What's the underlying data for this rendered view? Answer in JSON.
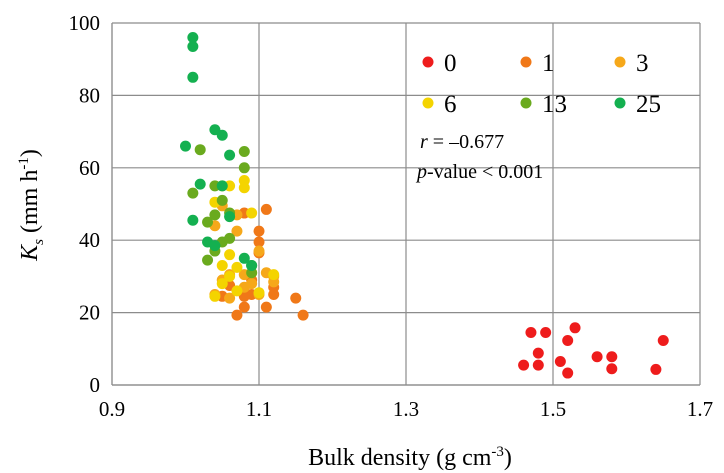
{
  "chart_data": {
    "type": "scatter",
    "xlabel": "Bulk density (g cm",
    "xlabel_sup": "-3",
    "xlabel_suffix": ")",
    "ylabel_main": "K",
    "ylabel_sub": "s",
    "ylabel_rest": " (mm h",
    "ylabel_sup": "-1",
    "ylabel_end": ")",
    "xlim": [
      0.9,
      1.7
    ],
    "ylim": [
      0,
      100
    ],
    "xticks": [
      "0.9",
      "1.1",
      "1.3",
      "1.5",
      "1.7"
    ],
    "xtick_values": [
      0.9,
      1.1,
      1.3,
      1.5,
      1.7
    ],
    "yticks": [
      "0",
      "20",
      "40",
      "60",
      "80",
      "100"
    ],
    "ytick_values": [
      0,
      20,
      40,
      60,
      80,
      100
    ],
    "grid": true,
    "legend_position": "top-right",
    "stats": {
      "r_label": "r",
      "r_value": " = –0.677",
      "p_label": "p",
      "p_value": "-value < 0.001"
    },
    "series": [
      {
        "name": "0",
        "color": "#ee1c1c",
        "points": [
          [
            1.46,
            5.5
          ],
          [
            1.47,
            14.5
          ],
          [
            1.48,
            8.8
          ],
          [
            1.48,
            5.5
          ],
          [
            1.49,
            14.5
          ],
          [
            1.51,
            6.5
          ],
          [
            1.52,
            12.3
          ],
          [
            1.52,
            3.3
          ],
          [
            1.53,
            15.8
          ],
          [
            1.56,
            7.8
          ],
          [
            1.58,
            7.8
          ],
          [
            1.58,
            4.5
          ],
          [
            1.64,
            4.3
          ],
          [
            1.65,
            12.3
          ]
        ]
      },
      {
        "name": "1",
        "color": "#f07818",
        "points": [
          [
            1.07,
            19.3
          ],
          [
            1.08,
            21.5
          ],
          [
            1.08,
            24.5
          ],
          [
            1.09,
            25
          ],
          [
            1.09,
            29
          ],
          [
            1.1,
            39.5
          ],
          [
            1.1,
            36.5
          ],
          [
            1.11,
            48.5
          ],
          [
            1.11,
            21.5
          ],
          [
            1.12,
            27
          ],
          [
            1.12,
            25
          ],
          [
            1.15,
            24
          ],
          [
            1.16,
            19.3
          ],
          [
            1.06,
            27.5
          ],
          [
            1.08,
            47.5
          ],
          [
            1.05,
            24.5
          ],
          [
            1.1,
            42.5
          ]
        ]
      },
      {
        "name": "3",
        "color": "#f6a81a",
        "points": [
          [
            1.04,
            44
          ],
          [
            1.04,
            25
          ],
          [
            1.05,
            29
          ],
          [
            1.06,
            30.5
          ],
          [
            1.06,
            24
          ],
          [
            1.07,
            42.5
          ],
          [
            1.08,
            30.5
          ],
          [
            1.08,
            27
          ],
          [
            1.09,
            28
          ],
          [
            1.1,
            37
          ],
          [
            1.1,
            25
          ],
          [
            1.11,
            31
          ],
          [
            1.12,
            30
          ],
          [
            1.12,
            28.5
          ],
          [
            1.05,
            49.5
          ],
          [
            1.07,
            47
          ]
        ]
      },
      {
        "name": "6",
        "color": "#f4d400",
        "points": [
          [
            1.04,
            50.5
          ],
          [
            1.05,
            55
          ],
          [
            1.05,
            33
          ],
          [
            1.06,
            55
          ],
          [
            1.06,
            36
          ],
          [
            1.06,
            30
          ],
          [
            1.07,
            26
          ],
          [
            1.08,
            56.5
          ],
          [
            1.08,
            54.5
          ],
          [
            1.09,
            47.5
          ],
          [
            1.09,
            31
          ],
          [
            1.1,
            25.5
          ],
          [
            1.12,
            30.5
          ],
          [
            1.04,
            24.5
          ],
          [
            1.05,
            28
          ],
          [
            1.07,
            32.5
          ]
        ]
      },
      {
        "name": "13",
        "color": "#6aaa1e",
        "points": [
          [
            1.01,
            53
          ],
          [
            1.02,
            65
          ],
          [
            1.03,
            34.5
          ],
          [
            1.04,
            55
          ],
          [
            1.04,
            47
          ],
          [
            1.04,
            37
          ],
          [
            1.05,
            51
          ],
          [
            1.05,
            39.5
          ],
          [
            1.06,
            47.5
          ],
          [
            1.06,
            40.5
          ],
          [
            1.08,
            64.5
          ],
          [
            1.08,
            60
          ],
          [
            1.09,
            33
          ],
          [
            1.09,
            31
          ],
          [
            1.03,
            45
          ]
        ]
      },
      {
        "name": "25",
        "color": "#14b050",
        "points": [
          [
            1.01,
            96
          ],
          [
            1.01,
            93.5
          ],
          [
            1.01,
            85
          ],
          [
            1.0,
            66
          ],
          [
            1.04,
            70.5
          ],
          [
            1.05,
            69
          ],
          [
            1.06,
            63.5
          ],
          [
            1.02,
            55.5
          ],
          [
            1.05,
            55
          ],
          [
            1.01,
            45.5
          ],
          [
            1.03,
            39.5
          ],
          [
            1.06,
            46.5
          ],
          [
            1.08,
            35
          ],
          [
            1.09,
            33
          ],
          [
            1.04,
            38.5
          ]
        ]
      }
    ]
  }
}
